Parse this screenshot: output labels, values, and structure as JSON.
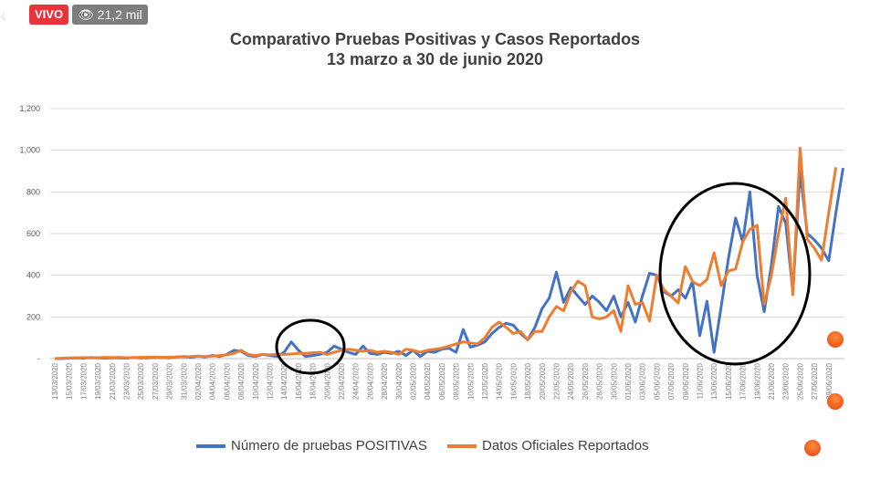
{
  "stream": {
    "live_label": "VIVO",
    "viewers": "21,2 mil"
  },
  "chart_data": {
    "type": "line",
    "title": "Comparativo Pruebas Positivas y Casos Reportados",
    "subtitle": "13 marzo a 30 de junio 2020",
    "ylim": [
      0,
      1200
    ],
    "yticks": [
      "-",
      "200",
      "400",
      "600",
      "800",
      "1,000",
      "1,200"
    ],
    "x_start": "13/03/2020",
    "x_end": "30/06/2020",
    "xtick_labels": [
      "13/03/2020",
      "15/03/2020",
      "17/03/2020",
      "19/03/2020",
      "21/03/2020",
      "23/03/2020",
      "25/03/2020",
      "27/03/2020",
      "29/03/2020",
      "31/03/2020",
      "02/04/2020",
      "04/04/2020",
      "06/04/2020",
      "08/04/2020",
      "10/04/2020",
      "12/04/2020",
      "14/04/2020",
      "16/04/2020",
      "18/04/2020",
      "20/04/2020",
      "22/04/2020",
      "24/04/2020",
      "26/04/2020",
      "28/04/2020",
      "30/04/2020",
      "02/05/2020",
      "04/05/2020",
      "06/05/2020",
      "08/05/2020",
      "10/05/2020",
      "12/05/2020",
      "14/05/2020",
      "16/05/2020",
      "18/05/2020",
      "20/05/2020",
      "22/05/2020",
      "24/05/2020",
      "26/05/2020",
      "28/05/2020",
      "30/05/2020",
      "01/06/2020",
      "03/06/2020",
      "05/06/2020",
      "07/06/2020",
      "09/06/2020",
      "11/06/2020",
      "13/06/2020",
      "15/06/2020",
      "17/06/2020",
      "19/06/2020",
      "21/06/2020",
      "23/06/2020",
      "25/06/2020",
      "27/06/2020",
      "29/06/2020"
    ],
    "series": [
      {
        "name": "Número de pruebas POSITIVAS",
        "color": "#4472c4",
        "values": [
          0,
          0,
          2,
          3,
          2,
          5,
          3,
          2,
          4,
          3,
          2,
          5,
          3,
          4,
          6,
          5,
          4,
          8,
          10,
          6,
          12,
          8,
          15,
          10,
          20,
          40,
          35,
          15,
          10,
          20,
          15,
          10,
          30,
          80,
          40,
          10,
          15,
          20,
          30,
          60,
          45,
          30,
          20,
          60,
          25,
          20,
          30,
          25,
          35,
          15,
          40,
          10,
          35,
          30,
          45,
          50,
          30,
          140,
          55,
          65,
          80,
          120,
          150,
          170,
          160,
          120,
          90,
          150,
          240,
          290,
          415,
          270,
          340,
          300,
          260,
          300,
          270,
          230,
          300,
          200,
          270,
          175,
          300,
          410,
          400,
          320,
          300,
          330,
          290,
          370,
          110,
          275,
          30,
          250,
          480,
          675,
          560,
          800,
          400,
          225,
          450,
          730,
          650,
          320,
          900,
          600,
          570,
          530,
          470,
          700,
          915
        ]
      },
      {
        "name": "Datos Oficiales Reportados",
        "color": "#ed7d31",
        "values": [
          0,
          2,
          3,
          4,
          5,
          3,
          4,
          6,
          5,
          6,
          4,
          5,
          6,
          7,
          8,
          6,
          7,
          8,
          9,
          10,
          12,
          10,
          12,
          15,
          18,
          25,
          40,
          20,
          15,
          20,
          18,
          20,
          20,
          22,
          25,
          25,
          28,
          30,
          20,
          30,
          40,
          45,
          40,
          35,
          40,
          30,
          35,
          30,
          20,
          45,
          40,
          30,
          40,
          45,
          50,
          60,
          70,
          80,
          75,
          70,
          100,
          150,
          175,
          150,
          120,
          130,
          90,
          130,
          130,
          200,
          250,
          230,
          320,
          372,
          350,
          200,
          190,
          200,
          230,
          130,
          350,
          260,
          270,
          180,
          400,
          330,
          300,
          267,
          442,
          370,
          350,
          380,
          508,
          350,
          420,
          430,
          560,
          620,
          640,
          262,
          400,
          600,
          770,
          306,
          1010,
          573,
          530,
          472,
          700,
          918
        ]
      }
    ]
  }
}
